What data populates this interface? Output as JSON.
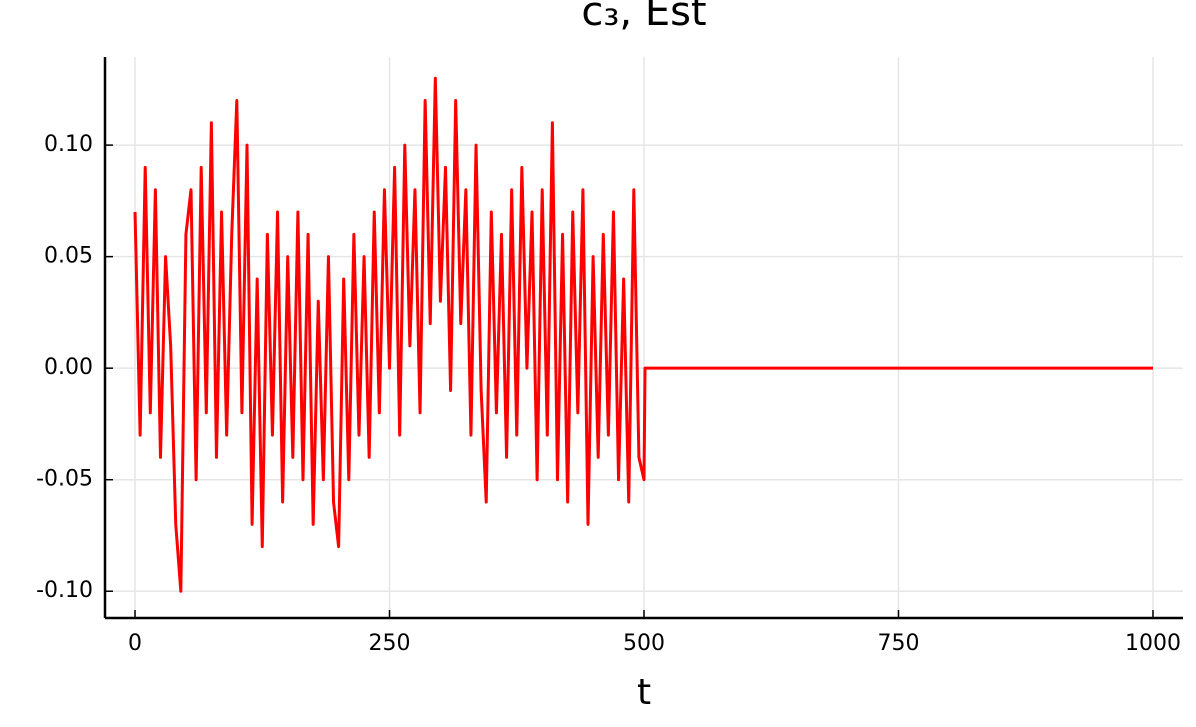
{
  "chart_data": {
    "type": "line",
    "title": "c₃, Est",
    "x_label": "t",
    "x": [
      0,
      5,
      10,
      15,
      20,
      25,
      30,
      35,
      40,
      45,
      50,
      55,
      60,
      65,
      70,
      75,
      80,
      85,
      90,
      95,
      100,
      105,
      110,
      115,
      120,
      125,
      130,
      135,
      140,
      145,
      150,
      155,
      160,
      165,
      170,
      175,
      180,
      185,
      190,
      195,
      200,
      205,
      210,
      215,
      220,
      225,
      230,
      235,
      240,
      245,
      250,
      255,
      260,
      265,
      270,
      275,
      280,
      285,
      290,
      295,
      300,
      305,
      310,
      315,
      320,
      325,
      330,
      335,
      340,
      345,
      350,
      355,
      360,
      365,
      370,
      375,
      380,
      385,
      390,
      395,
      400,
      405,
      410,
      415,
      420,
      425,
      430,
      435,
      440,
      445,
      450,
      455,
      460,
      465,
      470,
      475,
      480,
      485,
      490,
      495,
      500,
      501,
      1000
    ],
    "series": [
      {
        "name": "c3",
        "color": "#ff0000",
        "values": [
          0.07,
          -0.03,
          0.09,
          -0.02,
          0.08,
          -0.04,
          0.05,
          0.01,
          -0.07,
          -0.1,
          0.06,
          0.08,
          -0.05,
          0.09,
          -0.02,
          0.11,
          -0.04,
          0.07,
          -0.03,
          0.06,
          0.12,
          -0.02,
          0.1,
          -0.07,
          0.04,
          -0.08,
          0.06,
          -0.03,
          0.07,
          -0.06,
          0.05,
          -0.04,
          0.07,
          -0.05,
          0.06,
          -0.07,
          0.03,
          -0.05,
          0.05,
          -0.06,
          -0.08,
          0.04,
          -0.05,
          0.06,
          -0.03,
          0.05,
          -0.04,
          0.07,
          -0.02,
          0.08,
          0.0,
          0.09,
          -0.03,
          0.1,
          0.01,
          0.08,
          -0.02,
          0.12,
          0.02,
          0.13,
          0.03,
          0.09,
          -0.01,
          0.12,
          0.02,
          0.08,
          -0.03,
          0.1,
          -0.01,
          -0.06,
          0.07,
          -0.02,
          0.06,
          -0.04,
          0.08,
          -0.03,
          0.09,
          0.0,
          0.07,
          -0.05,
          0.08,
          -0.03,
          0.11,
          -0.05,
          0.06,
          -0.06,
          0.07,
          -0.02,
          0.08,
          -0.07,
          0.05,
          -0.04,
          0.06,
          -0.03,
          0.07,
          -0.05,
          0.04,
          -0.06,
          0.08,
          -0.04,
          -0.05,
          0,
          0
        ]
      }
    ],
    "xlim": [
      -29.5,
      1029.5
    ],
    "ylim": [
      -0.112,
      0.1395
    ],
    "xticks": [
      0,
      250,
      500,
      750,
      1000
    ],
    "yticks": [
      {
        "value": -0.1,
        "label": "-0.10"
      },
      {
        "value": -0.05,
        "label": "-0.05"
      },
      {
        "value": 0,
        "label": "0.00"
      },
      {
        "value": 0.05,
        "label": "0.05"
      },
      {
        "value": 0.1,
        "label": "0.10"
      }
    ],
    "grid": true
  }
}
